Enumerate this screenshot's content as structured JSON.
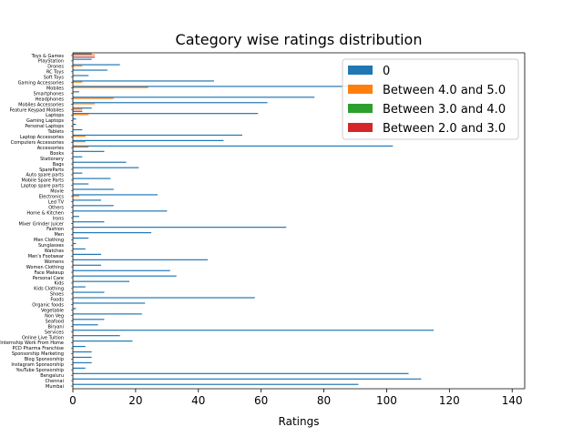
{
  "chart_data": {
    "type": "bar",
    "orientation": "horizontal",
    "title": "Category wise ratings distribution",
    "xlabel": "Ratings",
    "ylabel": "",
    "xlim": [
      0,
      144
    ],
    "xticks": [
      0,
      20,
      40,
      60,
      80,
      100,
      120,
      140
    ],
    "legend_position": "upper right",
    "categories": [
      "Toys & Games",
      "PlayStation",
      "Drones",
      "RC Toys",
      "Soft Toys",
      "Gaming Accessories",
      "Mobiles",
      "Smartphones",
      "Headphones",
      "Mobiles Accessories",
      "Feature Keypad Mobiles",
      "Laptops",
      "Gaming Laptops",
      "Personal Laptops",
      "Tablets",
      "Laptop Accessories",
      "Computers Accessories",
      "Accessories",
      "Books",
      "Stationery",
      "Bags",
      "SpareParts",
      "Auto spare parts",
      "Mobile Spare Parts",
      "Laptop spare parts",
      "Movie",
      "Electronics",
      "Led TV",
      "Others",
      "Home & Kitchen",
      "Irons",
      "Mixer Grinder Juicer",
      "Fashion",
      "Men",
      "Men Clothing",
      "Sunglasses",
      "Watches",
      "Men's Footwear",
      "Womens",
      "Women Clothing",
      "Face Makeup",
      "Personal Care",
      "Kids",
      "Kids Clothing",
      "Shoes",
      "Foods",
      "Organic foods",
      "Vegetable",
      "Non Veg",
      "Seafood",
      "Biryani",
      "Services",
      "Online Live Tuition",
      "Internship Work From Home",
      "PCD Pharma Franchise",
      "Sponsorship Marketing",
      "Blog Sponsorship",
      "Instagram Sponsorship",
      "YouTube Sponsorship",
      "Bengaluru",
      "Chennai",
      "Mumbai"
    ],
    "series": [
      {
        "name": "0",
        "color": "#1f77b4",
        "values": [
          6,
          6,
          15,
          11,
          5,
          45,
          95,
          2,
          77,
          62,
          6,
          59,
          1,
          1,
          3,
          54,
          48,
          102,
          10,
          3,
          17,
          21,
          3,
          12,
          5,
          13,
          27,
          9,
          13,
          30,
          2,
          10,
          68,
          25,
          5,
          1,
          4,
          9,
          43,
          9,
          31,
          33,
          18,
          4,
          10,
          58,
          23,
          1,
          22,
          10,
          8,
          115,
          15,
          19,
          4,
          6,
          6,
          6,
          4,
          107,
          111,
          91
        ]
      },
      {
        "name": "Between 4.0 and 5.0",
        "color": "#ff7f0e",
        "values": [
          7,
          0,
          3,
          0,
          0,
          3,
          24,
          0,
          13,
          7,
          3,
          5,
          0,
          0,
          0,
          4,
          4,
          5,
          0,
          0,
          0,
          0,
          0,
          0,
          0,
          0,
          2,
          0,
          0,
          0,
          0,
          0,
          0,
          0,
          0,
          0,
          0,
          0,
          0,
          0,
          0,
          0,
          0,
          0,
          0,
          0,
          0,
          0,
          0,
          0,
          0,
          0,
          0,
          0,
          0,
          0,
          0,
          0,
          0,
          0,
          0,
          0
        ]
      },
      {
        "name": "Between 3.0 and 4.0",
        "color": "#2ca02c",
        "values": [
          0,
          0,
          0,
          0,
          0,
          0,
          0,
          0,
          0,
          0,
          0,
          0,
          0,
          0,
          0,
          0,
          0,
          0,
          0,
          0,
          0,
          0,
          0,
          0,
          0,
          0,
          0,
          0,
          0,
          0,
          0,
          0,
          0,
          0,
          0,
          0,
          0,
          0,
          0,
          0,
          0,
          0,
          0,
          0,
          0,
          0,
          0,
          0,
          0,
          0,
          0,
          0,
          0,
          0,
          0,
          0,
          0,
          0,
          0,
          0,
          0,
          0
        ]
      },
      {
        "name": "Between 2.0 and 3.0",
        "color": "#d62728",
        "values": [
          7,
          0,
          0,
          0,
          0,
          0,
          0,
          0,
          0,
          0,
          3,
          0,
          0,
          0,
          0,
          0,
          0,
          0,
          0,
          0,
          0,
          0,
          0,
          0,
          0,
          0,
          0,
          0,
          0,
          0,
          0,
          0,
          0,
          0,
          0,
          0,
          0,
          0,
          0,
          0,
          0,
          0,
          0,
          0,
          0,
          0,
          0,
          0,
          0,
          0,
          0,
          0,
          0,
          0,
          0,
          0,
          0,
          0,
          0,
          0,
          0,
          0
        ]
      }
    ]
  }
}
